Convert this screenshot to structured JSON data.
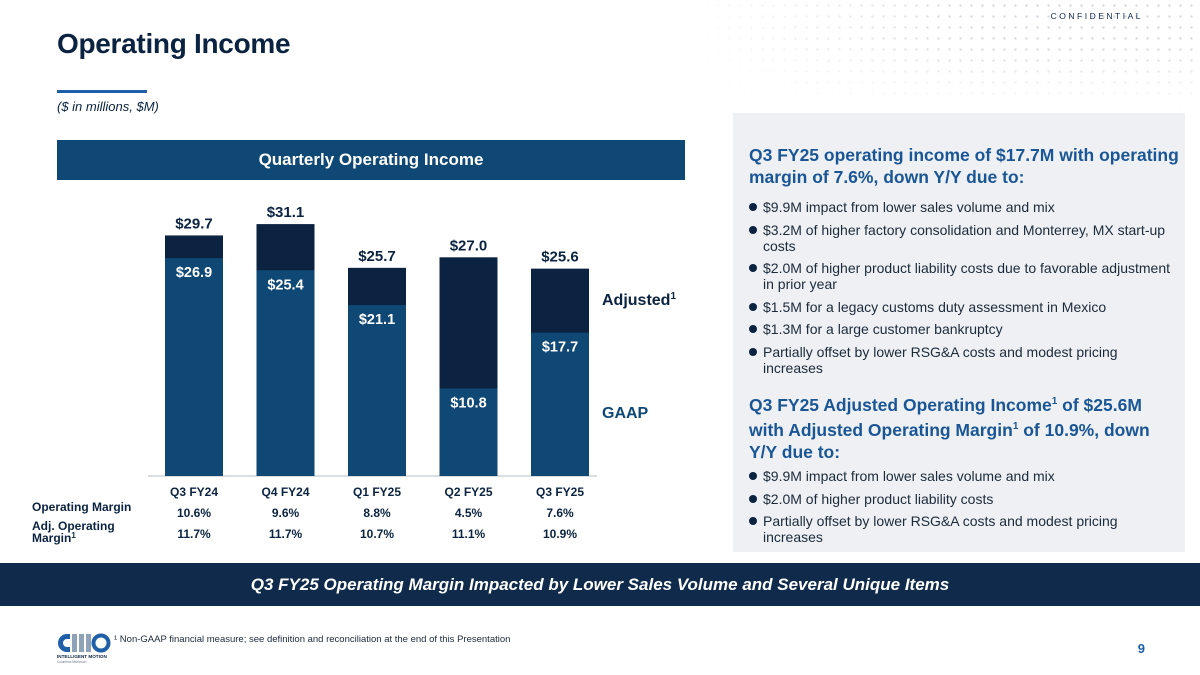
{
  "header": {
    "confidential": "CONFIDENTIAL",
    "title": "Operating Income",
    "subtitle": "($ in millions, $M)"
  },
  "chart_header": "Quarterly Operating Income",
  "chart_data": {
    "type": "bar",
    "stacked": true,
    "title": "Quarterly Operating Income",
    "categories": [
      "Q3 FY24",
      "Q4 FY24",
      "Q1 FY25",
      "Q2 FY25",
      "Q3 FY25"
    ],
    "series": [
      {
        "name": "GAAP",
        "values": [
          26.9,
          25.4,
          21.1,
          10.8,
          17.7
        ],
        "labels": [
          "$26.9",
          "$25.4",
          "$21.1",
          "$10.8",
          "$17.7"
        ],
        "color": "#0f4775"
      },
      {
        "name": "Adjusted¹",
        "totals": [
          29.7,
          31.1,
          25.7,
          27.0,
          25.6
        ],
        "labels": [
          "$29.7",
          "$31.1",
          "$25.7",
          "$27.0",
          "$25.6"
        ],
        "color": "#0b2341"
      }
    ],
    "ylim": [
      0,
      31.1
    ],
    "legend": "right",
    "rows": [
      {
        "label": "Operating Margin",
        "values": [
          "10.6%",
          "9.6%",
          "8.8%",
          "4.5%",
          "7.6%"
        ]
      },
      {
        "label": "Adj. Operating Margin¹",
        "values": [
          "11.7%",
          "11.7%",
          "10.7%",
          "11.1%",
          "10.9%"
        ]
      }
    ]
  },
  "legend": {
    "adjusted": "Adjusted¹",
    "gaap": "GAAP"
  },
  "panel": {
    "heading1": "Q3 FY25 operating income of $17.7M with operating margin of 7.6%, down Y/Y due to:",
    "bullets1": [
      "$9.9M impact from lower sales volume and mix",
      "$3.2M of higher factory consolidation and Monterrey, MX start-up costs",
      "$2.0M of higher product liability costs due to favorable adjustment in prior year",
      "$1.5M for a legacy customs duty assessment in Mexico",
      "$1.3M for a large customer bankruptcy",
      "Partially offset by lower RSG&A costs and modest pricing increases"
    ],
    "heading2": "Q3 FY25 Adjusted Operating Income¹ of $25.6M with Adjusted Operating Margin¹ of 10.9%, down Y/Y due to:",
    "bullets2": [
      "$9.9M impact from lower sales volume and mix",
      "$2.0M of higher product liability costs",
      "Partially offset by lower RSG&A costs and modest pricing increases"
    ]
  },
  "banner": "Q3 FY25 Operating Margin Impacted by Lower Sales Volume and Several Unique Items",
  "footer": {
    "footnote": "¹ Non-GAAP financial measure; see definition and reconciliation at the end of this Presentation",
    "page_number": "9",
    "logo_text": "CMCO",
    "logo_sub": "INTELLIGENT MOTION",
    "logo_tag": "Columbus McKinnon"
  },
  "colors": {
    "navy": "#0b2341",
    "blue": "#0f4775",
    "accent": "#1e5fa8",
    "panel_heading": "#1a5696"
  }
}
